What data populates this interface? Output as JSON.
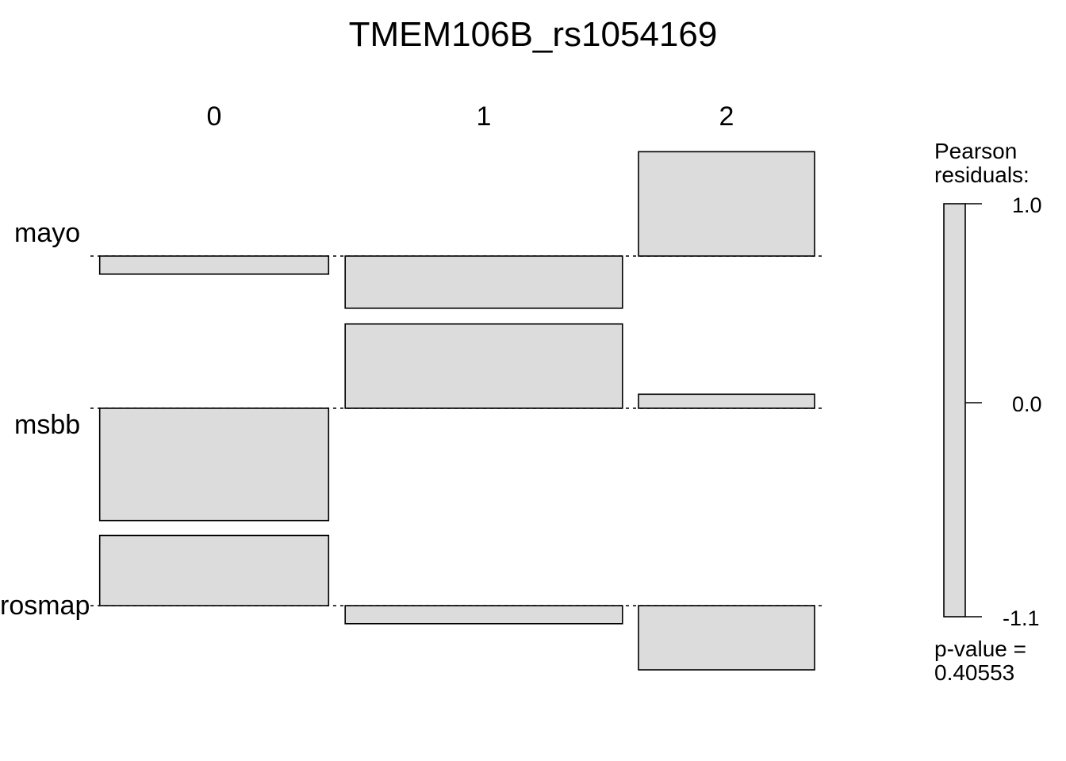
{
  "chart_data": {
    "type": "association-plot",
    "title": "TMEM106B_rs1054169",
    "columns": [
      "0",
      "1",
      "2"
    ],
    "rows": [
      "mayo",
      "msbb",
      "rosmap"
    ],
    "residuals": [
      [
        -0.09,
        -0.26,
        0.52
      ],
      [
        -0.56,
        0.42,
        0.07
      ],
      [
        0.35,
        -0.09,
        -0.32
      ]
    ],
    "column_widths": [
      0.52,
      0.63,
      0.4
    ],
    "legend": {
      "title_line1": "Pearson",
      "title_line2": "residuals:",
      "max_label": "1.0",
      "zero_label": "0.0",
      "min_label": "-1.1",
      "max": 1.0,
      "min": -1.1
    },
    "pvalue_line1": "p-value =",
    "pvalue_line2": "0.40553",
    "bar_color": "#dcdcdc"
  }
}
